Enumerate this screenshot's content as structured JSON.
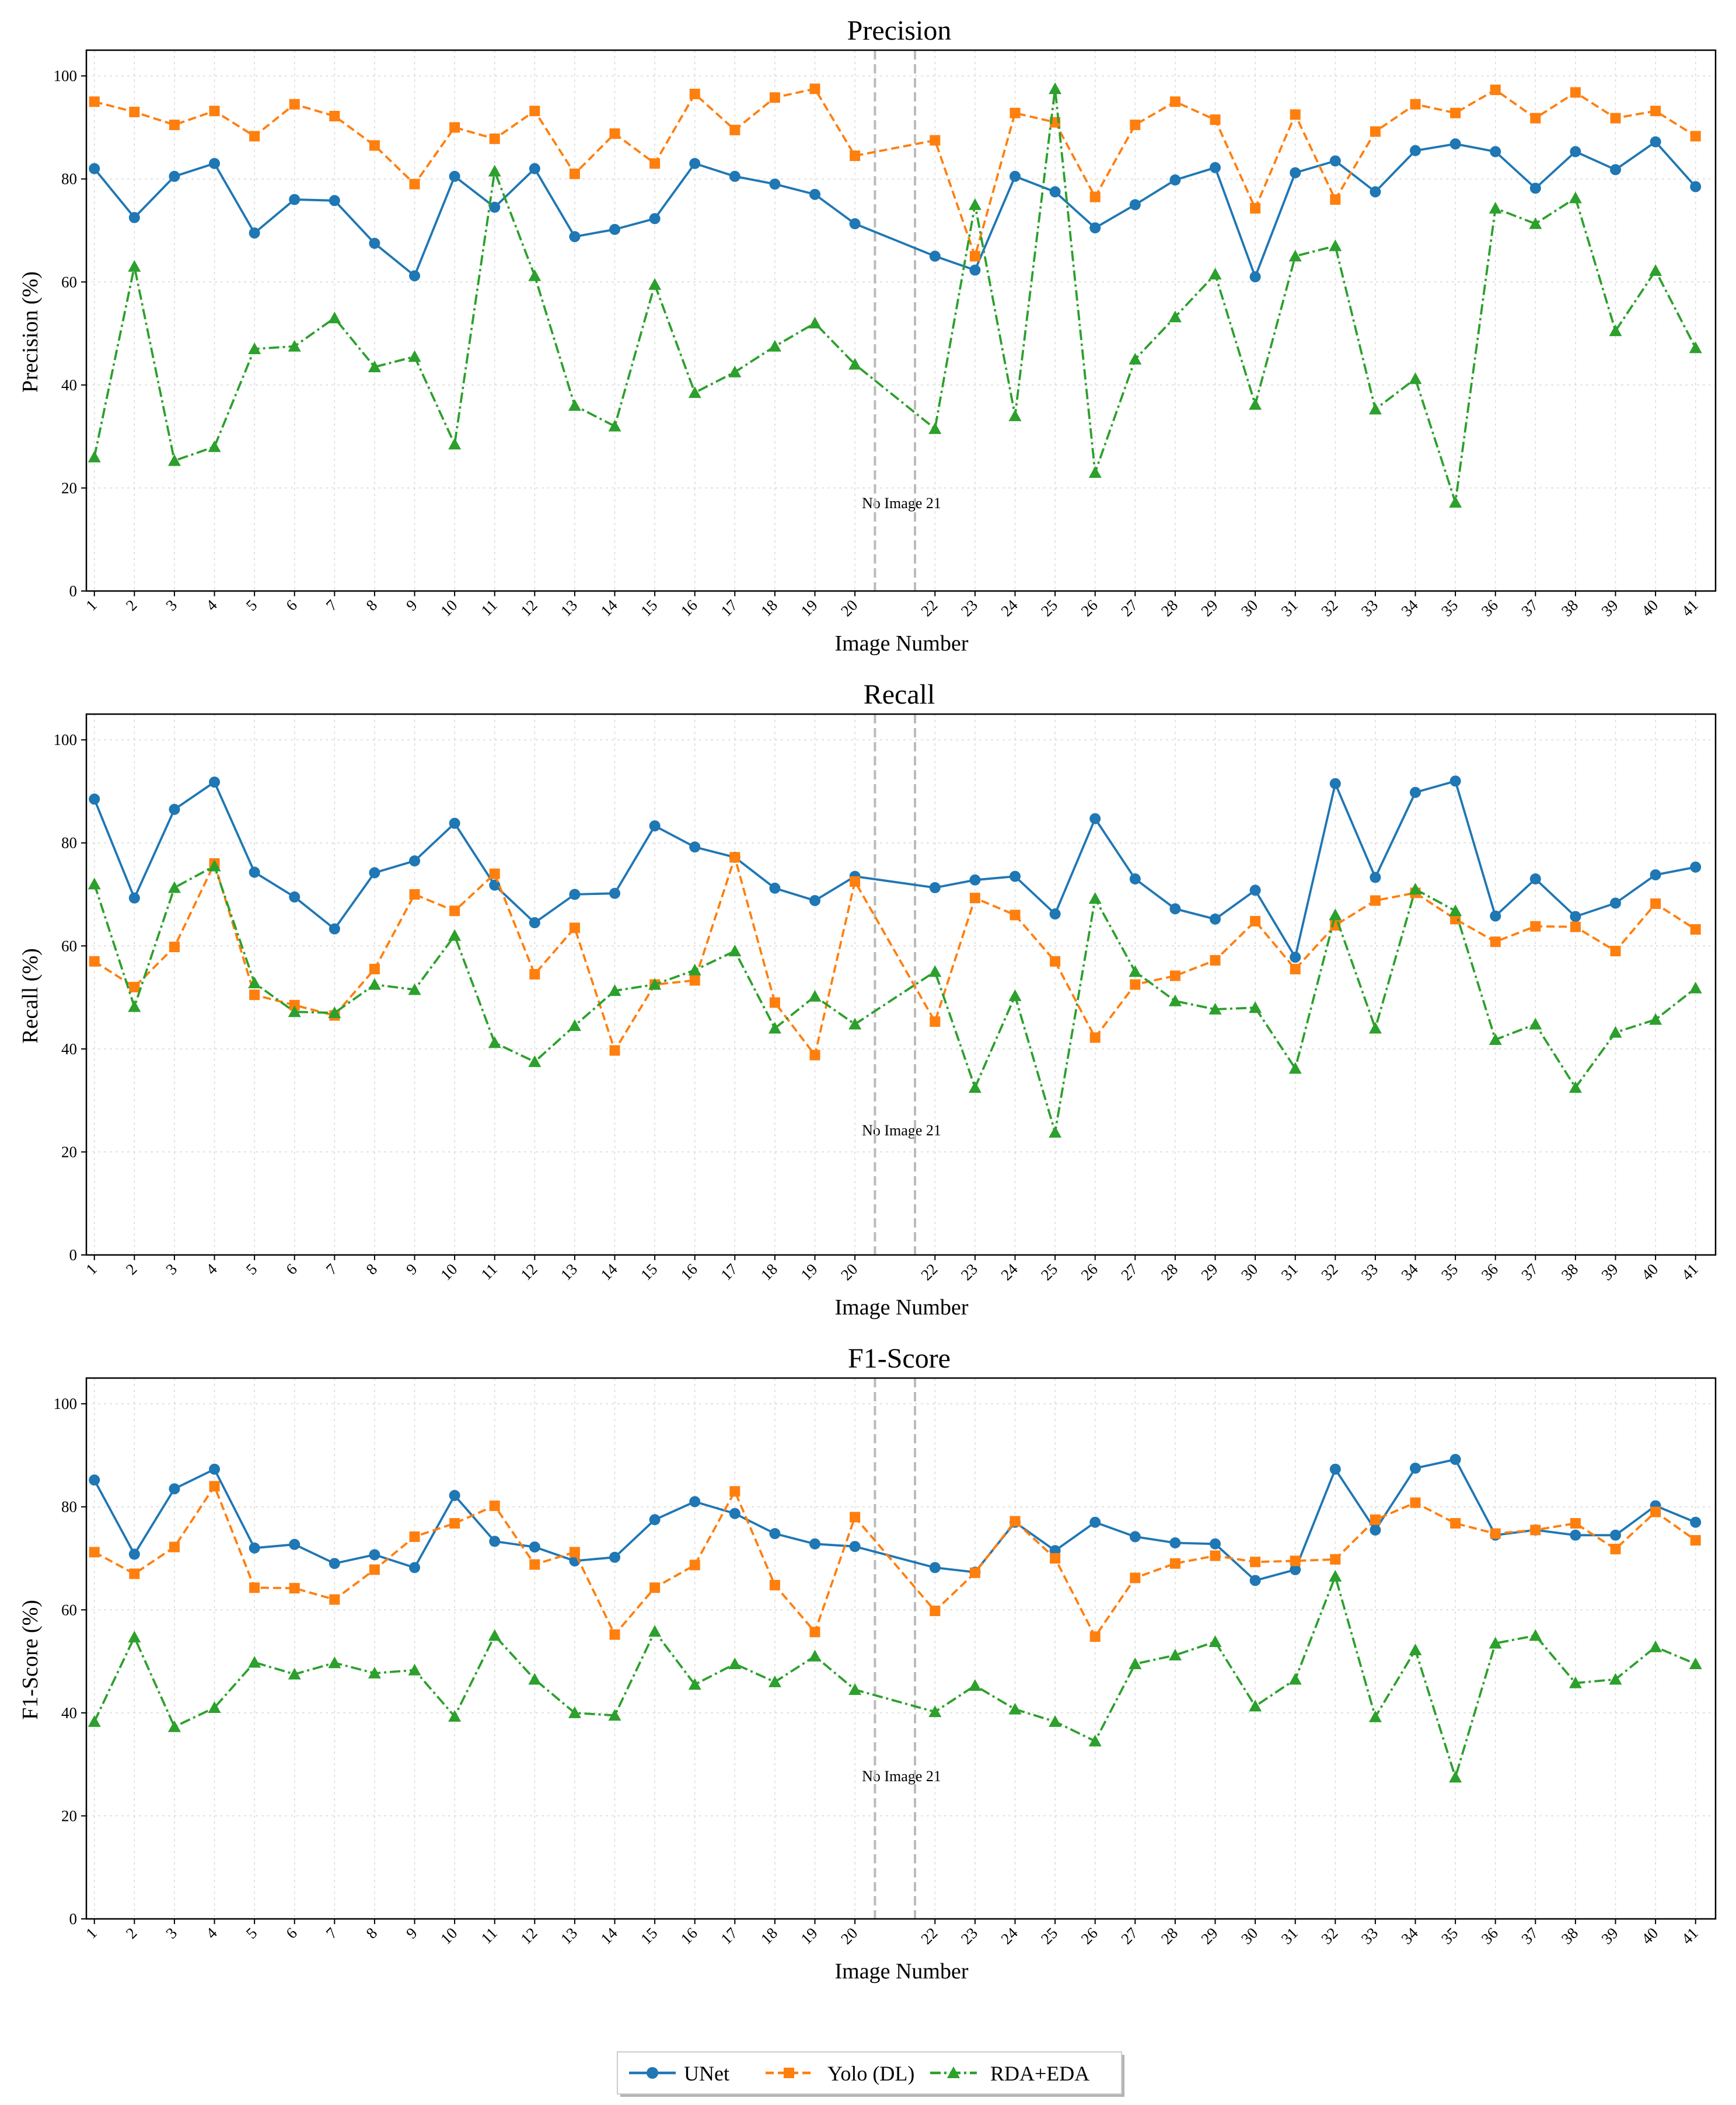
{
  "legend": {
    "entries": [
      "UNet",
      "Yolo (DL)",
      "RDA+EDA"
    ]
  },
  "colors": {
    "unet": "#1f77b4",
    "yolo": "#ff7f0e",
    "rda": "#2ca02c",
    "gap_line": "#bbbbbb",
    "gap_text": "#e8474b",
    "grid": "#d9d9d9"
  },
  "chart_data": [
    {
      "type": "line",
      "title": "Precision",
      "xlabel": "Image Number",
      "ylabel": "Precision (%)",
      "ylim": [
        0,
        105
      ],
      "yticks": [
        0,
        20,
        40,
        60,
        80,
        100
      ],
      "xlim": [
        0.8,
        41.5
      ],
      "grid": true,
      "legend": "bottom-center",
      "gap_label": "No Image 21",
      "gap_lines": [
        20.5,
        21.5
      ],
      "x": [
        1,
        2,
        3,
        4,
        5,
        6,
        7,
        8,
        9,
        10,
        11,
        12,
        13,
        14,
        15,
        16,
        17,
        18,
        19,
        20,
        22,
        23,
        24,
        25,
        26,
        27,
        28,
        29,
        30,
        31,
        32,
        33,
        34,
        35,
        36,
        37,
        38,
        39,
        40,
        41
      ],
      "series": [
        {
          "name": "UNet",
          "values": [
            82,
            72.5,
            80.5,
            83,
            69.5,
            76,
            75.8,
            67.5,
            61.2,
            80.5,
            74.5,
            82,
            68.8,
            70.2,
            72.3,
            83,
            80.5,
            79,
            77,
            71.3,
            65,
            62.3,
            80.5,
            77.5,
            70.5,
            75,
            79.8,
            82.2,
            61,
            81.2,
            83.5,
            77.5,
            85.5,
            86.8,
            85.3,
            78.2,
            85.3,
            81.8,
            87.2,
            78.5
          ]
        },
        {
          "name": "Yolo (DL)",
          "values": [
            95,
            93,
            90.5,
            93.2,
            88.3,
            94.5,
            92.2,
            86.5,
            79,
            90,
            87.8,
            93.2,
            81,
            88.8,
            83,
            96.5,
            89.5,
            95.8,
            97.5,
            84.5,
            87.5,
            65,
            92.8,
            91,
            76.5,
            90.5,
            95,
            91.5,
            74.3,
            92.5,
            76,
            89.2,
            94.5,
            92.8,
            97.3,
            91.8,
            96.8,
            91.8,
            93.2,
            88.3
          ]
        },
        {
          "name": "RDA+EDA",
          "values": [
            26,
            63,
            25.3,
            28,
            47,
            47.5,
            53,
            43.5,
            45.5,
            28.5,
            81.5,
            61.2,
            36,
            32,
            59.5,
            38.5,
            42.5,
            47.5,
            52,
            44,
            31.5,
            75,
            34,
            97.5,
            23,
            45,
            53.2,
            61.5,
            36.2,
            65,
            67,
            35.3,
            41.2,
            17.2,
            74.3,
            71.3,
            76.3,
            50.5,
            62.2,
            47.2
          ]
        }
      ]
    },
    {
      "type": "line",
      "title": "Recall",
      "xlabel": "Image Number",
      "ylabel": "Recall (%)",
      "ylim": [
        0,
        105
      ],
      "yticks": [
        0,
        20,
        40,
        60,
        80,
        100
      ],
      "xlim": [
        0.8,
        41.5
      ],
      "grid": true,
      "gap_label": "No Image 21",
      "gap_lines": [
        20.5,
        21.5
      ],
      "x": [
        1,
        2,
        3,
        4,
        5,
        6,
        7,
        8,
        9,
        10,
        11,
        12,
        13,
        14,
        15,
        16,
        17,
        18,
        19,
        20,
        22,
        23,
        24,
        25,
        26,
        27,
        28,
        29,
        30,
        31,
        32,
        33,
        34,
        35,
        36,
        37,
        38,
        39,
        40,
        41
      ],
      "series": [
        {
          "name": "UNet",
          "values": [
            88.5,
            69.3,
            86.5,
            91.8,
            74.3,
            69.5,
            63.3,
            74.2,
            76.5,
            83.8,
            71.8,
            64.5,
            70,
            70.2,
            83.3,
            79.2,
            77.2,
            71.2,
            68.8,
            73.5,
            71.3,
            72.8,
            73.5,
            66.2,
            84.7,
            73,
            67.2,
            65.2,
            70.8,
            57.8,
            91.5,
            73.3,
            89.8,
            92,
            65.8,
            73,
            65.7,
            68.3,
            73.8,
            75.3
          ]
        },
        {
          "name": "Yolo (DL)",
          "values": [
            57,
            52,
            59.8,
            76,
            50.5,
            48.5,
            46.5,
            55.5,
            70,
            66.8,
            74,
            54.5,
            63.5,
            39.7,
            52.5,
            53.3,
            77.2,
            49,
            38.8,
            72.5,
            45.3,
            69.3,
            66,
            57,
            42.2,
            52.5,
            54.2,
            57.2,
            64.8,
            55.5,
            64,
            68.8,
            70.3,
            65.2,
            60.8,
            63.8,
            63.7,
            59,
            68.2,
            63.2
          ]
        },
        {
          "name": "RDA+EDA",
          "values": [
            72,
            48.2,
            71.3,
            75.5,
            52.8,
            47.2,
            47,
            52.5,
            51.5,
            62,
            41.2,
            37.5,
            44.5,
            51.3,
            52.5,
            55.3,
            59,
            44,
            50.2,
            44.8,
            55,
            32.5,
            50.3,
            23.8,
            69.2,
            55,
            49.3,
            47.7,
            48,
            36.2,
            66,
            44,
            71,
            66.8,
            41.8,
            44.8,
            32.5,
            43.2,
            45.7,
            51.8
          ]
        }
      ]
    },
    {
      "type": "line",
      "title": "F1-Score",
      "xlabel": "Image Number",
      "ylabel": "F1-Score (%)",
      "ylim": [
        0,
        105
      ],
      "yticks": [
        0,
        20,
        40,
        60,
        80,
        100
      ],
      "xlim": [
        0.8,
        41.5
      ],
      "grid": true,
      "gap_label": "No Image 21",
      "gap_lines": [
        20.5,
        21.5
      ],
      "x": [
        1,
        2,
        3,
        4,
        5,
        6,
        7,
        8,
        9,
        10,
        11,
        12,
        13,
        14,
        15,
        16,
        17,
        18,
        19,
        20,
        22,
        23,
        24,
        25,
        26,
        27,
        28,
        29,
        30,
        31,
        32,
        33,
        34,
        35,
        36,
        37,
        38,
        39,
        40,
        41
      ],
      "series": [
        {
          "name": "UNet",
          "values": [
            85.2,
            70.8,
            83.5,
            87.3,
            72,
            72.7,
            69,
            70.7,
            68.2,
            82.2,
            73.3,
            72.2,
            69.5,
            70.2,
            77.5,
            81,
            78.7,
            74.8,
            72.8,
            72.3,
            68.2,
            67.3,
            77,
            71.5,
            77,
            74.2,
            73,
            72.8,
            65.7,
            67.8,
            87.3,
            75.5,
            87.5,
            89.2,
            74.5,
            75.5,
            74.5,
            74.5,
            80.2,
            77
          ]
        },
        {
          "name": "Yolo (DL)",
          "values": [
            71.2,
            67,
            72.2,
            84,
            64.3,
            64.2,
            62,
            67.8,
            74.2,
            76.8,
            80.2,
            68.8,
            71.2,
            55.2,
            64.3,
            68.7,
            83,
            64.8,
            55.7,
            78,
            59.8,
            67.2,
            77.2,
            70,
            54.8,
            66.2,
            69,
            70.5,
            69.3,
            69.5,
            69.8,
            77.5,
            80.8,
            76.8,
            74.8,
            75.5,
            76.8,
            71.8,
            79,
            73.5
          ]
        },
        {
          "name": "RDA+EDA",
          "values": [
            38.3,
            54.7,
            37.3,
            41,
            49.8,
            47.5,
            49.7,
            47.7,
            48.3,
            39.3,
            55,
            46.5,
            40,
            39.5,
            55.8,
            45.5,
            49.5,
            46,
            51,
            44.5,
            40.2,
            45.3,
            40.7,
            38.3,
            34.5,
            49.5,
            51.2,
            53.8,
            41.3,
            46.5,
            66.5,
            39.2,
            52.2,
            27.5,
            53.5,
            55,
            45.8,
            46.5,
            52.8,
            49.5
          ]
        }
      ]
    }
  ]
}
